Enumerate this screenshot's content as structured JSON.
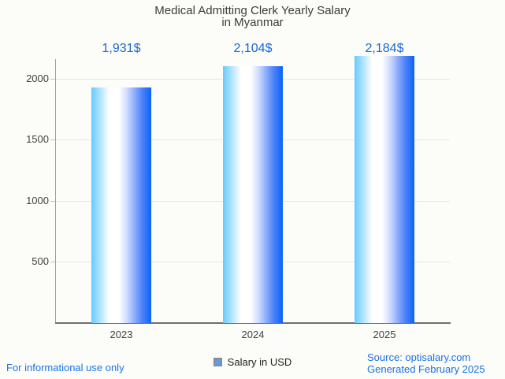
{
  "title": {
    "line1": "Medical Admitting Clerk Yearly Salary",
    "line2": "in Myanmar"
  },
  "chart_data": {
    "type": "bar",
    "title": "Medical Admitting Clerk Yearly Salary in Myanmar",
    "categories": [
      "2023",
      "2024",
      "2025"
    ],
    "values": [
      1931,
      2104,
      2184
    ],
    "value_labels": [
      "1,931$",
      "2,104$",
      "2,184$"
    ],
    "series": [
      {
        "name": "Salary in USD",
        "values": [
          1931,
          2104,
          2184
        ]
      }
    ],
    "xlabel": "",
    "ylabel": "",
    "ylim": [
      0,
      2160
    ],
    "yticks": [
      500,
      1000,
      1500,
      2000
    ],
    "grid": true,
    "legend_position": "bottom"
  },
  "legend": {
    "label": "Salary in USD"
  },
  "footer": {
    "left": "For informational use only",
    "source": "Source: optisalary.com",
    "generated": "Generated February 2025"
  },
  "colors": {
    "background": "#fcfcf9",
    "title_text": "#3c3c3c",
    "axis_text": "#424242",
    "value_label_blue": "#1967d2",
    "footer_link_blue": "#1a73e8",
    "gridline": "#e7e7e7",
    "axis_line": "#6f6f6f",
    "legend_swatch_fill": "#5d9cec",
    "legend_swatch_border": "#8a8a8a",
    "bar_gradient_stops": [
      "#66cbfe",
      "#aee3ff",
      "#ffffff",
      "#ffffff",
      "#ccdaff",
      "#8fadfb",
      "#4b82f9",
      "#0c63f7"
    ],
    "bar_gradient_positions": [
      0,
      14,
      30,
      46,
      60,
      72,
      85,
      100
    ]
  }
}
